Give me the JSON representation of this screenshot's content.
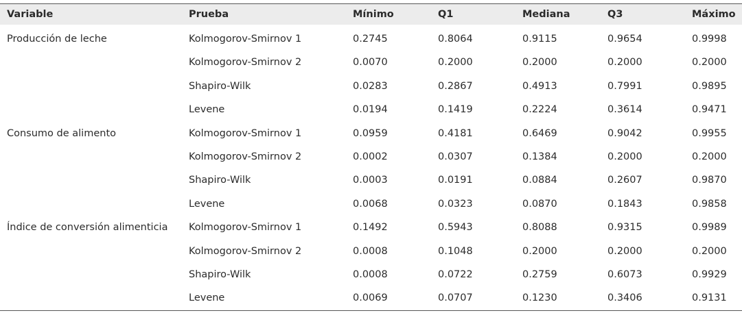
{
  "table": {
    "header": [
      "Variable",
      "Prueba",
      "Mínimo",
      "Q1",
      "Mediana",
      "Q3",
      "Máximo"
    ],
    "groups": [
      {
        "variable": "Producción de leche",
        "rows": [
          [
            "Kolmogorov-Smirnov 1",
            "0.2745",
            "0.8064",
            "0.9115",
            "0.9654",
            "0.9998"
          ],
          [
            "Kolmogorov-Smirnov 2",
            "0.0070",
            "0.2000",
            "0.2000",
            "0.2000",
            "0.2000"
          ],
          [
            "Shapiro-Wilk",
            "0.0283",
            "0.2867",
            "0.4913",
            "0.7991",
            "0.9895"
          ],
          [
            "Levene",
            "0.0194",
            "0.1419",
            "0.2224",
            "0.3614",
            "0.9471"
          ]
        ]
      },
      {
        "variable": "Consumo de alimento",
        "rows": [
          [
            "Kolmogorov-Smirnov 1",
            "0.0959",
            "0.4181",
            "0.6469",
            "0.9042",
            "0.9955"
          ],
          [
            "Kolmogorov-Smirnov 2",
            "0.0002",
            "0.0307",
            "0.1384",
            "0.2000",
            "0.2000"
          ],
          [
            "Shapiro-Wilk",
            "0.0003",
            "0.0191",
            "0.0884",
            "0.2607",
            "0.9870"
          ],
          [
            "Levene",
            "0.0068",
            "0.0323",
            "0.0870",
            "0.1843",
            "0.9858"
          ]
        ]
      },
      {
        "variable": "Índice de conversión alimenticia",
        "rows": [
          [
            "Kolmogorov-Smirnov 1",
            "0.1492",
            "0.5943",
            "0.8088",
            "0.9315",
            "0.9989"
          ],
          [
            "Kolmogorov-Smirnov 2",
            "0.0008",
            "0.1048",
            "0.2000",
            "0.2000",
            "0.2000"
          ],
          [
            "Shapiro-Wilk",
            "0.0008",
            "0.0722",
            "0.2759",
            "0.6073",
            "0.9929"
          ],
          [
            "Levene",
            "0.0069",
            "0.0707",
            "0.1230",
            "0.3406",
            "0.9131"
          ]
        ]
      }
    ]
  }
}
